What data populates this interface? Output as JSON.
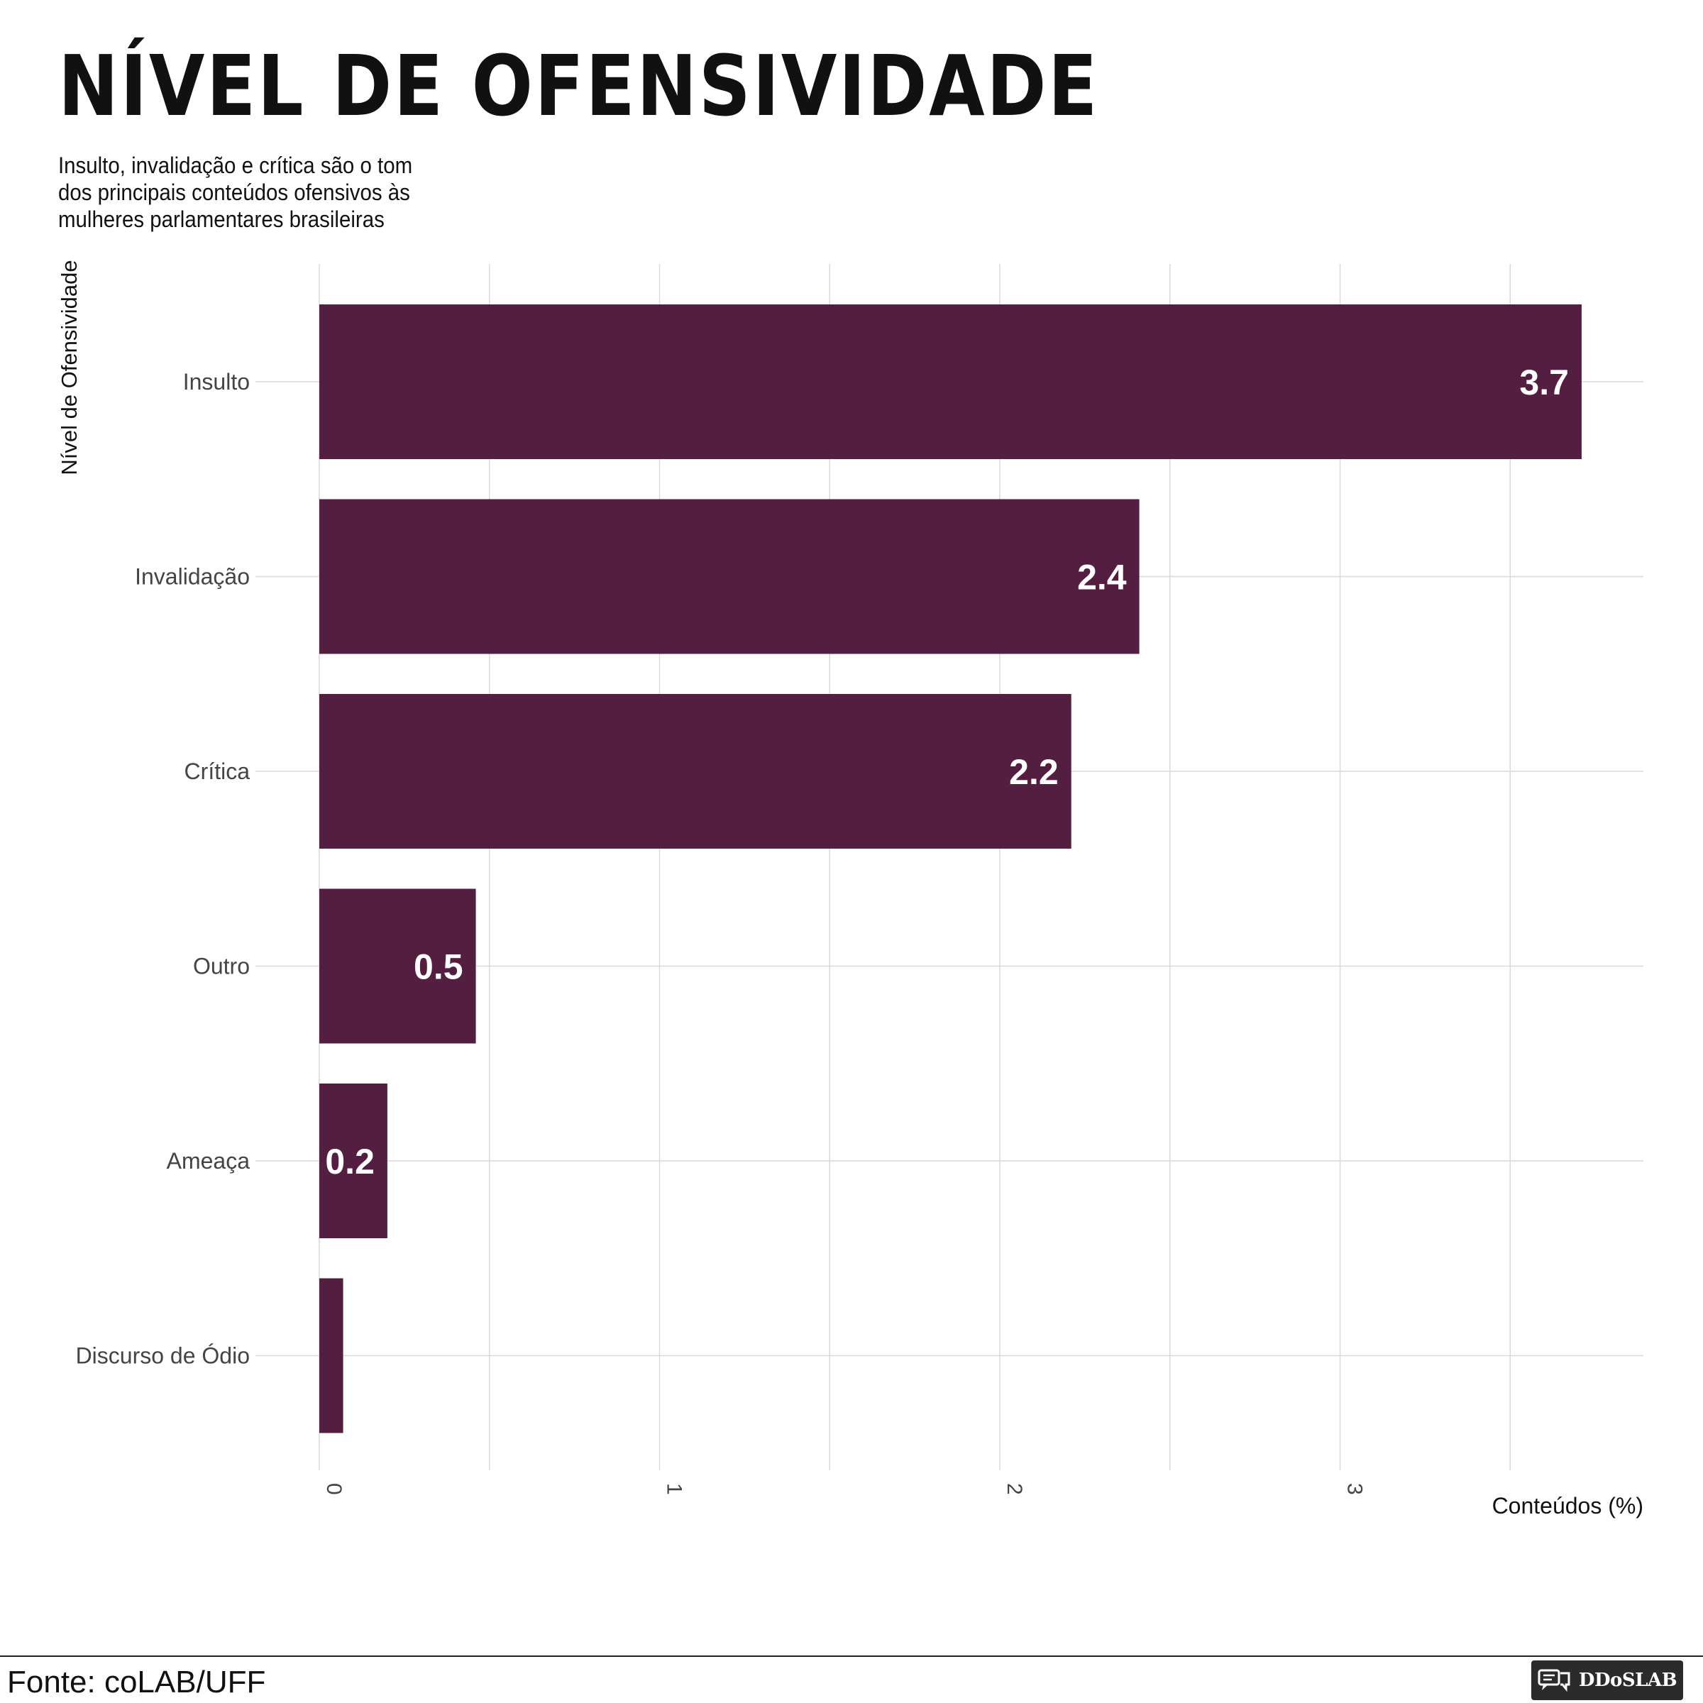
{
  "header": {
    "title": "NÍVEL DE OFENSIVIDADE",
    "subtitle": "Insulto, invalidação e crítica são o tom dos principais conteúdos ofensivos às mulheres parlamentares brasileiras"
  },
  "chart_data": {
    "type": "bar",
    "orientation": "horizontal",
    "categories": [
      "Insulto",
      "Invalidação",
      "Crítica",
      "Outro",
      "Ameaça",
      "Discurso de Ódio"
    ],
    "values": [
      3.71,
      2.41,
      2.21,
      0.46,
      0.2,
      0.07
    ],
    "data_labels": [
      "3.7",
      "2.4",
      "2.2",
      "0.5",
      "0.2",
      ""
    ],
    "xlabel": "Conteúdos (%)",
    "ylabel": "Nível de Ofensividade",
    "xlim": [
      0,
      3.9
    ],
    "xticks": [
      "0",
      "1",
      "2",
      "3"
    ],
    "grid": true,
    "bar_color": "#541e40"
  },
  "footer": {
    "source": "Fonte: coLAB/UFF",
    "logo_text": "DDoSLAB"
  }
}
